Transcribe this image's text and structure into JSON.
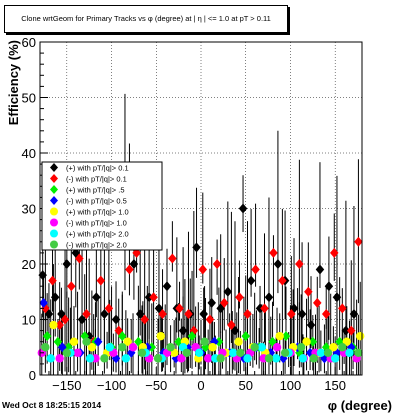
{
  "title": "Clone wrtGeom for Primary Tracks vs φ (degree) at | η | <= 1.0 at pT > 0.11",
  "footer": "Wed Oct  8 18:25:15 2014",
  "chart_data": {
    "type": "scatter",
    "xlabel": "φ (degree)",
    "ylabel": "Efficiency (%)",
    "xlim": [
      -180,
      180
    ],
    "ylim": [
      0,
      60
    ],
    "xticks": [
      -150,
      -100,
      -50,
      0,
      50,
      100,
      150
    ],
    "yticks": [
      0,
      10,
      20,
      30,
      40,
      50,
      60
    ],
    "legend_position": "left-middle",
    "series": [
      {
        "name": "(+) with pT/|q|> 0.1",
        "color": "#000000",
        "marker": "diamond",
        "x": [
          -177,
          -170,
          -163,
          -156,
          -150,
          -140,
          -133,
          -125,
          -117,
          -108,
          -95,
          -85,
          -75,
          -68,
          -58,
          -47,
          -38,
          -27,
          -20,
          -12,
          -5,
          3,
          12,
          22,
          30,
          38,
          47,
          56,
          66,
          76,
          86,
          94,
          104,
          113,
          123,
          133,
          143,
          152,
          162,
          171
        ],
        "y": [
          18,
          11,
          14,
          11,
          20,
          22,
          10,
          7,
          14,
          11,
          10,
          27,
          20,
          11,
          14,
          12,
          16,
          12,
          8,
          11,
          23,
          11,
          13,
          12,
          15,
          8,
          30,
          17,
          12,
          14,
          20,
          17,
          12,
          11,
          9,
          19,
          16,
          14,
          8,
          11
        ]
      },
      {
        "name": "(-) with pT/|q|> 0.1",
        "color": "#ff0000",
        "marker": "diamond",
        "x": [
          -174,
          -166,
          -158,
          -152,
          -145,
          -136,
          -128,
          -120,
          -112,
          -103,
          -92,
          -80,
          -72,
          -63,
          -53,
          -43,
          -32,
          -24,
          -14,
          -8,
          2,
          10,
          18,
          26,
          34,
          43,
          52,
          61,
          71,
          81,
          91,
          101,
          110,
          120,
          130,
          140,
          149,
          158,
          168,
          176
        ],
        "y": [
          12,
          17,
          9,
          10,
          16,
          21,
          11,
          6,
          17,
          12,
          8,
          19,
          22,
          10,
          14,
          11,
          21,
          12,
          11,
          8,
          19,
          10,
          20,
          13,
          9,
          14,
          11,
          19,
          12,
          22,
          17,
          11,
          20,
          15,
          13,
          11,
          22,
          12,
          8,
          24
        ]
      },
      {
        "name": "(+) with pT/|q|> .5",
        "color": "#00ee00",
        "marker": "diamond",
        "x": [
          -172,
          -160,
          -148,
          -130,
          -118,
          -100,
          -88,
          -70,
          -55,
          -40,
          -25,
          -10,
          5,
          20,
          35,
          50,
          65,
          80,
          95,
          110,
          125,
          140,
          155,
          170
        ],
        "y": [
          7,
          6,
          5,
          7,
          6,
          5,
          7,
          6,
          5,
          4,
          6,
          7,
          5,
          6,
          4,
          7,
          5,
          6,
          7,
          4,
          6,
          5,
          6,
          5
        ]
      },
      {
        "name": "(-) with pT/|q|> 0.5",
        "color": "#0000ff",
        "marker": "diamond",
        "x": [
          -176,
          -155,
          -135,
          -115,
          -95,
          -78,
          -60,
          -42,
          -28,
          -15,
          0,
          15,
          32,
          48,
          62,
          78,
          92,
          108,
          122,
          138,
          152,
          168
        ],
        "y": [
          13,
          5,
          4,
          6,
          3,
          4,
          5,
          4,
          3,
          5,
          4,
          6,
          4,
          3,
          5,
          4,
          3,
          5,
          4,
          3,
          4,
          5
        ]
      },
      {
        "name": "(+) with pT/|q|> 1.0",
        "color": "#ffff00",
        "marker": "circle",
        "x": [
          -165,
          -142,
          -122,
          -105,
          -82,
          -65,
          -45,
          -30,
          -18,
          -3,
          13,
          28,
          42,
          58,
          72,
          88,
          103,
          118,
          132,
          148,
          163,
          178
        ],
        "y": [
          9,
          6,
          5,
          4,
          6,
          5,
          7,
          4,
          6,
          3,
          5,
          4,
          6,
          5,
          4,
          7,
          5,
          6,
          4,
          5,
          6,
          7
        ]
      },
      {
        "name": "(-) with pT/|q|> 1.0",
        "color": "#ff00ff",
        "marker": "circle",
        "x": [
          -178,
          -158,
          -138,
          -118,
          -98,
          -76,
          -58,
          -38,
          -22,
          -6,
          8,
          24,
          40,
          55,
          70,
          85,
          100,
          115,
          128,
          145,
          160,
          174
        ],
        "y": [
          4,
          3,
          4,
          3,
          4,
          5,
          3,
          4,
          3,
          5,
          3,
          4,
          3,
          4,
          3,
          5,
          4,
          3,
          4,
          3,
          4,
          3
        ]
      },
      {
        "name": "(+) with pT/|q|> 2.0",
        "color": "#00ffff",
        "marker": "circle",
        "x": [
          -168,
          -146,
          -124,
          -102,
          -84,
          -62,
          -44,
          -20,
          -2,
          16,
          36,
          52,
          68,
          84,
          98,
          114,
          134,
          150,
          166
        ],
        "y": [
          3,
          4,
          3,
          5,
          3,
          4,
          3,
          5,
          4,
          3,
          4,
          3,
          5,
          3,
          4,
          3,
          4,
          3,
          4
        ]
      },
      {
        "name": "(-) with pT/|q|> 2.0",
        "color": "#44cc44",
        "marker": "circle",
        "x": [
          -174,
          -150,
          -128,
          -108,
          -88,
          -66,
          -48,
          -34,
          -16,
          4,
          22,
          44,
          60,
          76,
          94,
          112,
          126,
          142,
          158,
          176
        ],
        "y": [
          5,
          4,
          6,
          3,
          5,
          4,
          3,
          5,
          4,
          6,
          3,
          4,
          5,
          3,
          4,
          5,
          3,
          4,
          5,
          4
        ]
      }
    ]
  }
}
